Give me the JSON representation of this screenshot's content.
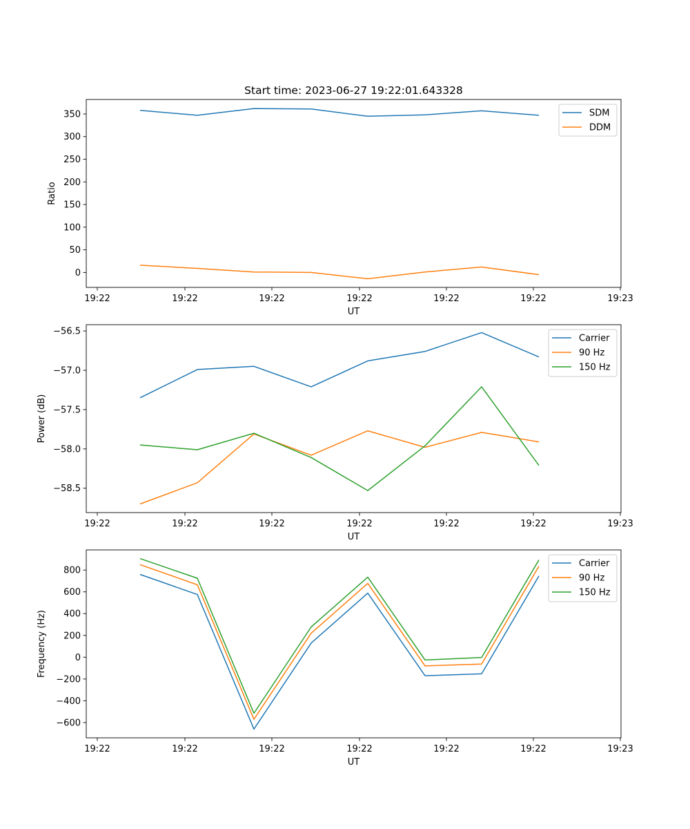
{
  "figure": {
    "title": "Start time: 2023-06-27 19:22:01.643328"
  },
  "chart_data": [
    {
      "type": "line",
      "xlabel": "UT",
      "ylabel": "Ratio",
      "xticks": [
        "19:22",
        "19:22",
        "19:22",
        "19:22",
        "19:22",
        "19:22",
        "19:23"
      ],
      "yticks": [
        0,
        50,
        100,
        150,
        200,
        250,
        300,
        350
      ],
      "ylim": [
        -33,
        382
      ],
      "legend_position": "upper-right",
      "series": [
        {
          "name": "SDM",
          "color": "#1f77b4",
          "values": [
            358,
            347,
            362,
            361,
            345,
            348,
            357,
            347
          ]
        },
        {
          "name": "DDM",
          "color": "#ff7f0e",
          "values": [
            16,
            9,
            1,
            0,
            -14,
            1,
            12,
            -5
          ]
        }
      ]
    },
    {
      "type": "line",
      "xlabel": "UT",
      "ylabel": "Power (dB)",
      "xticks": [
        "19:22",
        "19:22",
        "19:22",
        "19:22",
        "19:22",
        "19:22",
        "19:23"
      ],
      "yticks": [
        -58.5,
        -58.0,
        -57.5,
        -57.0,
        -56.5
      ],
      "ytick_labels": [
        "−58.5",
        "−58.0",
        "−57.5",
        "−57.0",
        "−56.5"
      ],
      "ylim": [
        -58.81,
        -56.42
      ],
      "legend_position": "upper-right",
      "series": [
        {
          "name": "Carrier",
          "color": "#1f77b4",
          "values": [
            -57.35,
            -56.99,
            -56.95,
            -57.21,
            -56.88,
            -56.76,
            -56.52,
            -56.83
          ]
        },
        {
          "name": "90 Hz",
          "color": "#ff7f0e",
          "values": [
            -58.7,
            -58.43,
            -57.81,
            -58.08,
            -57.77,
            -57.98,
            -57.79,
            -57.91
          ]
        },
        {
          "name": "150 Hz",
          "color": "#2ca02c",
          "values": [
            -57.95,
            -58.01,
            -57.8,
            -58.11,
            -58.53,
            -57.96,
            -57.21,
            -58.21
          ]
        }
      ]
    },
    {
      "type": "line",
      "xlabel": "UT",
      "ylabel": "Frequency (Hz)",
      "xticks": [
        "19:22",
        "19:22",
        "19:22",
        "19:22",
        "19:22",
        "19:22",
        "19:23"
      ],
      "yticks": [
        -600,
        -400,
        -200,
        0,
        200,
        400,
        600,
        800
      ],
      "ytick_labels": [
        "−600",
        "−400",
        "−200",
        "0",
        "200",
        "400",
        "600",
        "800"
      ],
      "ylim": [
        -740,
        985
      ],
      "legend_position": "upper-right",
      "series": [
        {
          "name": "Carrier",
          "color": "#1f77b4",
          "values": [
            760,
            575,
            -660,
            130,
            588,
            -170,
            -153,
            745
          ]
        },
        {
          "name": "90 Hz",
          "color": "#ff7f0e",
          "values": [
            850,
            665,
            -570,
            220,
            678,
            -80,
            -63,
            835
          ]
        },
        {
          "name": "150 Hz",
          "color": "#2ca02c",
          "values": [
            905,
            725,
            -515,
            278,
            735,
            -25,
            -3,
            893
          ]
        }
      ]
    }
  ]
}
